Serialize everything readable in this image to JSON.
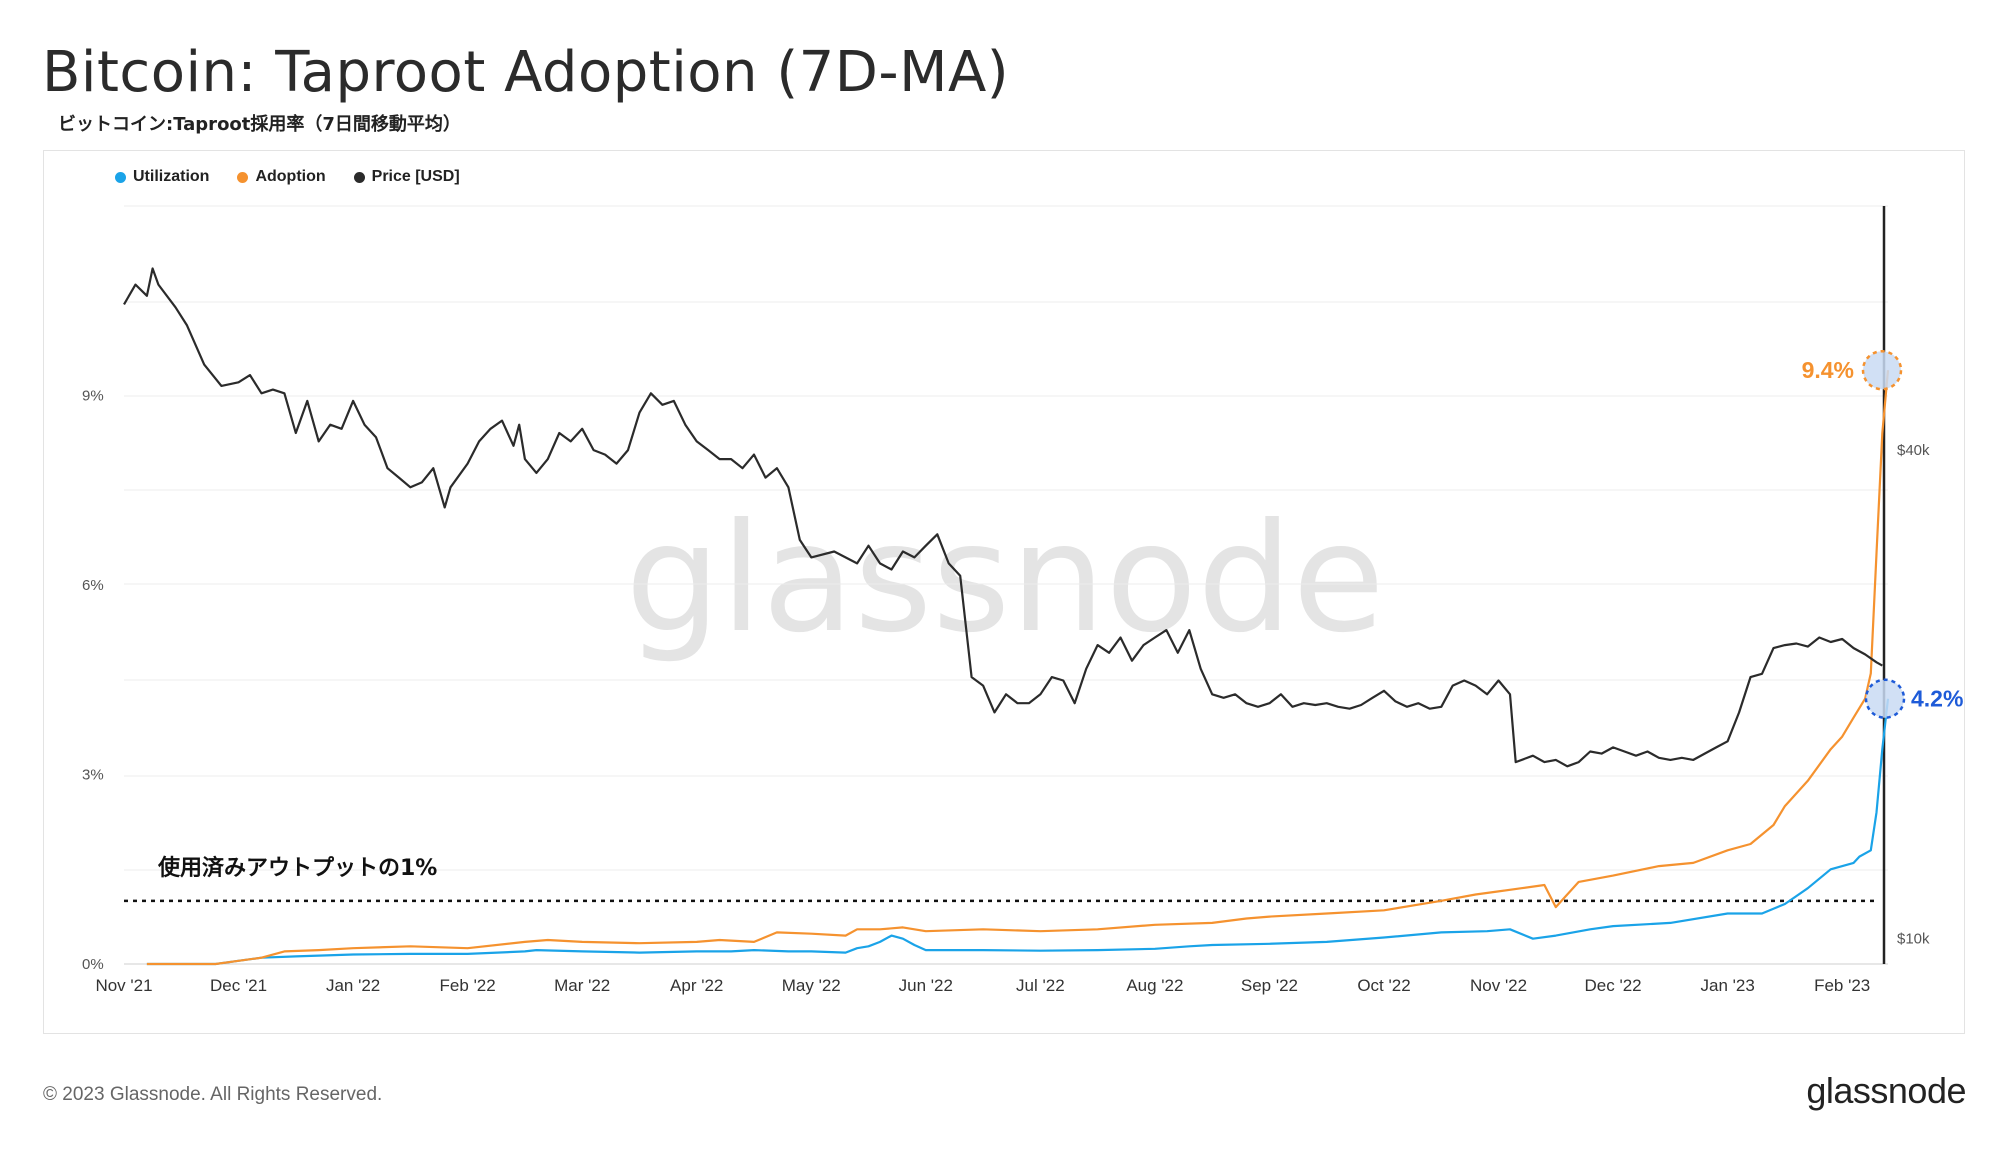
{
  "title": "Bitcoin: Taproot Adoption (7D-MA)",
  "subtitle": "ビットコイン:Taproot採用率（7日間移動平均）",
  "footer": {
    "copyright": "© 2023 Glassnode. All Rights Reserved.",
    "logo": "glassnode"
  },
  "watermark": "glassnode",
  "colors": {
    "utilization": "#1aa3e8",
    "adoption": "#f5922f",
    "price": "#2b2b2b",
    "blue_label": "#1e5bd8"
  },
  "chart_data": {
    "type": "line",
    "title": "Bitcoin: Taproot Adoption (7D-MA)",
    "x_tick_labels": [
      "Nov '21",
      "Dec '21",
      "Jan '22",
      "Feb '22",
      "Mar '22",
      "Apr '22",
      "May '22",
      "Jun '22",
      "Jul '22",
      "Aug '22",
      "Sep '22",
      "Oct '22",
      "Nov '22",
      "Dec '22",
      "Jan '23",
      "Feb '23"
    ],
    "left_axis": {
      "ticks": [
        "0%",
        "3%",
        "6%",
        "9%"
      ],
      "tick_values": [
        0,
        3,
        6,
        9
      ],
      "range": [
        0,
        12
      ]
    },
    "right_axis": {
      "ticks": [
        "$10k",
        "$40k"
      ],
      "tick_values": [
        10000,
        40000
      ],
      "scale": "log",
      "range": [
        9300,
        80000
      ]
    },
    "x_range_months": [
      0,
      15.4
    ],
    "legend": [
      "Utilization",
      "Adoption",
      "Price [USD]"
    ],
    "threshold": {
      "value": 1,
      "label": "使用済みアウトプットの1%"
    },
    "annotations": [
      {
        "text": "9.4%",
        "series": "Adoption",
        "value": 9.4
      },
      {
        "text": "4.2%",
        "series": "Utilization",
        "value": 4.2
      }
    ],
    "series": [
      {
        "name": "Utilization",
        "axis": "left",
        "points": [
          [
            0.2,
            0
          ],
          [
            0.8,
            0
          ],
          [
            1.0,
            0.05
          ],
          [
            1.2,
            0.1
          ],
          [
            1.5,
            0.12
          ],
          [
            2,
            0.15
          ],
          [
            2.5,
            0.16
          ],
          [
            3,
            0.16
          ],
          [
            3.5,
            0.2
          ],
          [
            3.6,
            0.22
          ],
          [
            4,
            0.2
          ],
          [
            4.5,
            0.18
          ],
          [
            5,
            0.2
          ],
          [
            5.3,
            0.2
          ],
          [
            5.5,
            0.22
          ],
          [
            5.8,
            0.2
          ],
          [
            6,
            0.2
          ],
          [
            6.3,
            0.18
          ],
          [
            6.4,
            0.25
          ],
          [
            6.5,
            0.28
          ],
          [
            6.6,
            0.35
          ],
          [
            6.7,
            0.45
          ],
          [
            6.8,
            0.4
          ],
          [
            6.9,
            0.3
          ],
          [
            7,
            0.22
          ],
          [
            7.5,
            0.22
          ],
          [
            8,
            0.21
          ],
          [
            8.5,
            0.22
          ],
          [
            9,
            0.24
          ],
          [
            9.3,
            0.28
          ],
          [
            9.5,
            0.3
          ],
          [
            10,
            0.32
          ],
          [
            10.5,
            0.35
          ],
          [
            11,
            0.42
          ],
          [
            11.5,
            0.5
          ],
          [
            11.9,
            0.52
          ],
          [
            12.1,
            0.55
          ],
          [
            12.3,
            0.4
          ],
          [
            12.5,
            0.45
          ],
          [
            12.8,
            0.55
          ],
          [
            13,
            0.6
          ],
          [
            13.5,
            0.65
          ],
          [
            14,
            0.8
          ],
          [
            14.3,
            0.8
          ],
          [
            14.5,
            0.95
          ],
          [
            14.7,
            1.2
          ],
          [
            14.9,
            1.5
          ],
          [
            15.1,
            1.6
          ],
          [
            15.15,
            1.7
          ],
          [
            15.25,
            1.8
          ],
          [
            15.3,
            2.4
          ],
          [
            15.35,
            3.4
          ],
          [
            15.4,
            4.2
          ]
        ]
      },
      {
        "name": "Adoption",
        "axis": "left",
        "points": [
          [
            0.2,
            0
          ],
          [
            0.8,
            0
          ],
          [
            1.0,
            0.05
          ],
          [
            1.2,
            0.1
          ],
          [
            1.4,
            0.2
          ],
          [
            1.7,
            0.22
          ],
          [
            2,
            0.25
          ],
          [
            2.5,
            0.28
          ],
          [
            3,
            0.25
          ],
          [
            3.5,
            0.35
          ],
          [
            3.7,
            0.38
          ],
          [
            4,
            0.35
          ],
          [
            4.5,
            0.33
          ],
          [
            5,
            0.35
          ],
          [
            5.2,
            0.38
          ],
          [
            5.5,
            0.35
          ],
          [
            5.7,
            0.5
          ],
          [
            6,
            0.48
          ],
          [
            6.3,
            0.45
          ],
          [
            6.4,
            0.55
          ],
          [
            6.6,
            0.55
          ],
          [
            6.8,
            0.58
          ],
          [
            7,
            0.52
          ],
          [
            7.5,
            0.55
          ],
          [
            8,
            0.52
          ],
          [
            8.5,
            0.55
          ],
          [
            9,
            0.62
          ],
          [
            9.5,
            0.65
          ],
          [
            9.8,
            0.72
          ],
          [
            10,
            0.75
          ],
          [
            10.5,
            0.8
          ],
          [
            11,
            0.85
          ],
          [
            11.5,
            1.0
          ],
          [
            11.8,
            1.1
          ],
          [
            12,
            1.15
          ],
          [
            12.2,
            1.2
          ],
          [
            12.4,
            1.25
          ],
          [
            12.5,
            0.9
          ],
          [
            12.7,
            1.3
          ],
          [
            13,
            1.4
          ],
          [
            13.4,
            1.55
          ],
          [
            13.7,
            1.6
          ],
          [
            14,
            1.8
          ],
          [
            14.2,
            1.9
          ],
          [
            14.4,
            2.2
          ],
          [
            14.5,
            2.5
          ],
          [
            14.7,
            2.9
          ],
          [
            14.9,
            3.4
          ],
          [
            15.0,
            3.6
          ],
          [
            15.1,
            3.9
          ],
          [
            15.2,
            4.2
          ],
          [
            15.25,
            4.6
          ],
          [
            15.3,
            6.5
          ],
          [
            15.35,
            8.4
          ],
          [
            15.4,
            9.4
          ]
        ]
      },
      {
        "name": "Price [USD]",
        "axis": "right",
        "points": [
          [
            0,
            60500
          ],
          [
            0.1,
            64000
          ],
          [
            0.2,
            62000
          ],
          [
            0.25,
            67000
          ],
          [
            0.3,
            64000
          ],
          [
            0.45,
            60000
          ],
          [
            0.55,
            57000
          ],
          [
            0.7,
            51000
          ],
          [
            0.85,
            48000
          ],
          [
            1.0,
            48500
          ],
          [
            1.1,
            49500
          ],
          [
            1.2,
            47000
          ],
          [
            1.3,
            47500
          ],
          [
            1.4,
            47000
          ],
          [
            1.5,
            42000
          ],
          [
            1.6,
            46000
          ],
          [
            1.7,
            41000
          ],
          [
            1.8,
            43000
          ],
          [
            1.9,
            42500
          ],
          [
            2.0,
            46000
          ],
          [
            2.1,
            43000
          ],
          [
            2.2,
            41500
          ],
          [
            2.3,
            38000
          ],
          [
            2.4,
            37000
          ],
          [
            2.5,
            36000
          ],
          [
            2.6,
            36500
          ],
          [
            2.7,
            38000
          ],
          [
            2.8,
            34000
          ],
          [
            2.85,
            36000
          ],
          [
            3.0,
            38500
          ],
          [
            3.1,
            41000
          ],
          [
            3.2,
            42500
          ],
          [
            3.3,
            43500
          ],
          [
            3.4,
            40500
          ],
          [
            3.45,
            43000
          ],
          [
            3.5,
            39000
          ],
          [
            3.6,
            37500
          ],
          [
            3.7,
            39000
          ],
          [
            3.8,
            42000
          ],
          [
            3.9,
            41000
          ],
          [
            4.0,
            42500
          ],
          [
            4.1,
            40000
          ],
          [
            4.2,
            39500
          ],
          [
            4.3,
            38500
          ],
          [
            4.4,
            40000
          ],
          [
            4.5,
            44500
          ],
          [
            4.6,
            47000
          ],
          [
            4.7,
            45500
          ],
          [
            4.8,
            46000
          ],
          [
            4.9,
            43000
          ],
          [
            5.0,
            41000
          ],
          [
            5.1,
            40000
          ],
          [
            5.2,
            39000
          ],
          [
            5.3,
            39000
          ],
          [
            5.4,
            38000
          ],
          [
            5.5,
            39500
          ],
          [
            5.6,
            37000
          ],
          [
            5.7,
            38000
          ],
          [
            5.8,
            36000
          ],
          [
            5.9,
            31000
          ],
          [
            6.0,
            29500
          ],
          [
            6.2,
            30000
          ],
          [
            6.4,
            29000
          ],
          [
            6.5,
            30500
          ],
          [
            6.6,
            29000
          ],
          [
            6.7,
            28500
          ],
          [
            6.8,
            30000
          ],
          [
            6.9,
            29500
          ],
          [
            7.0,
            30500
          ],
          [
            7.1,
            31500
          ],
          [
            7.2,
            29000
          ],
          [
            7.3,
            28000
          ],
          [
            7.4,
            21000
          ],
          [
            7.5,
            20500
          ],
          [
            7.6,
            19000
          ],
          [
            7.7,
            20000
          ],
          [
            7.8,
            19500
          ],
          [
            7.9,
            19500
          ],
          [
            8.0,
            20000
          ],
          [
            8.1,
            21000
          ],
          [
            8.2,
            20800
          ],
          [
            8.3,
            19500
          ],
          [
            8.4,
            21500
          ],
          [
            8.5,
            23000
          ],
          [
            8.6,
            22500
          ],
          [
            8.7,
            23500
          ],
          [
            8.8,
            22000
          ],
          [
            8.9,
            23000
          ],
          [
            9.0,
            23500
          ],
          [
            9.1,
            24000
          ],
          [
            9.2,
            22500
          ],
          [
            9.3,
            24000
          ],
          [
            9.4,
            21500
          ],
          [
            9.5,
            20000
          ],
          [
            9.6,
            19800
          ],
          [
            9.7,
            20000
          ],
          [
            9.8,
            19500
          ],
          [
            9.9,
            19300
          ],
          [
            10.0,
            19500
          ],
          [
            10.1,
            20000
          ],
          [
            10.2,
            19300
          ],
          [
            10.3,
            19500
          ],
          [
            10.4,
            19400
          ],
          [
            10.5,
            19500
          ],
          [
            10.6,
            19300
          ],
          [
            10.7,
            19200
          ],
          [
            10.8,
            19400
          ],
          [
            10.9,
            19800
          ],
          [
            11.0,
            20200
          ],
          [
            11.1,
            19600
          ],
          [
            11.2,
            19300
          ],
          [
            11.3,
            19500
          ],
          [
            11.4,
            19200
          ],
          [
            11.5,
            19300
          ],
          [
            11.6,
            20500
          ],
          [
            11.7,
            20800
          ],
          [
            11.8,
            20500
          ],
          [
            11.9,
            20000
          ],
          [
            12.0,
            20800
          ],
          [
            12.1,
            20000
          ],
          [
            12.15,
            16500
          ],
          [
            12.3,
            16800
          ],
          [
            12.4,
            16500
          ],
          [
            12.5,
            16600
          ],
          [
            12.6,
            16300
          ],
          [
            12.7,
            16500
          ],
          [
            12.8,
            17000
          ],
          [
            12.9,
            16900
          ],
          [
            13.0,
            17200
          ],
          [
            13.1,
            17000
          ],
          [
            13.2,
            16800
          ],
          [
            13.3,
            17000
          ],
          [
            13.4,
            16700
          ],
          [
            13.5,
            16600
          ],
          [
            13.6,
            16700
          ],
          [
            13.7,
            16600
          ],
          [
            13.8,
            16900
          ],
          [
            13.9,
            17200
          ],
          [
            14.0,
            17500
          ],
          [
            14.1,
            19000
          ],
          [
            14.2,
            21000
          ],
          [
            14.3,
            21200
          ],
          [
            14.4,
            22800
          ],
          [
            14.5,
            23000
          ],
          [
            14.6,
            23100
          ],
          [
            14.7,
            22900
          ],
          [
            14.8,
            23500
          ],
          [
            14.9,
            23200
          ],
          [
            15.0,
            23400
          ],
          [
            15.1,
            22800
          ],
          [
            15.2,
            22400
          ],
          [
            15.3,
            21900
          ],
          [
            15.35,
            21700
          ]
        ]
      }
    ]
  }
}
